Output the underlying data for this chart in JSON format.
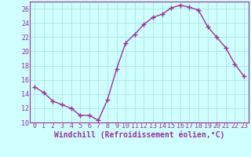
{
  "x": [
    0,
    1,
    2,
    3,
    4,
    5,
    6,
    7,
    8,
    9,
    10,
    11,
    12,
    13,
    14,
    15,
    16,
    17,
    18,
    19,
    20,
    21,
    22,
    23
  ],
  "y": [
    15,
    14.2,
    13,
    12.5,
    12,
    11,
    11,
    10.3,
    13.2,
    17.5,
    21.2,
    22.4,
    23.8,
    24.8,
    25.2,
    26.1,
    26.5,
    26.2,
    25.8,
    23.5,
    22,
    20.5,
    18.2,
    16.5
  ],
  "line_color": "#993399",
  "marker": "+",
  "marker_size": 4,
  "linewidth": 1.0,
  "xlabel": "Windchill (Refroidissement éolien,°C)",
  "ylabel": "",
  "xlim": [
    -0.5,
    23.5
  ],
  "ylim": [
    10,
    27
  ],
  "yticks": [
    10,
    12,
    14,
    16,
    18,
    20,
    22,
    24,
    26
  ],
  "xticks": [
    0,
    1,
    2,
    3,
    4,
    5,
    6,
    7,
    8,
    9,
    10,
    11,
    12,
    13,
    14,
    15,
    16,
    17,
    18,
    19,
    20,
    21,
    22,
    23
  ],
  "bg_color": "#cfffff",
  "grid_color": "#aadddd",
  "label_color": "#993399",
  "tick_color": "#993399",
  "xlabel_fontsize": 7,
  "tick_fontsize": 6,
  "marker_color": "#993399"
}
